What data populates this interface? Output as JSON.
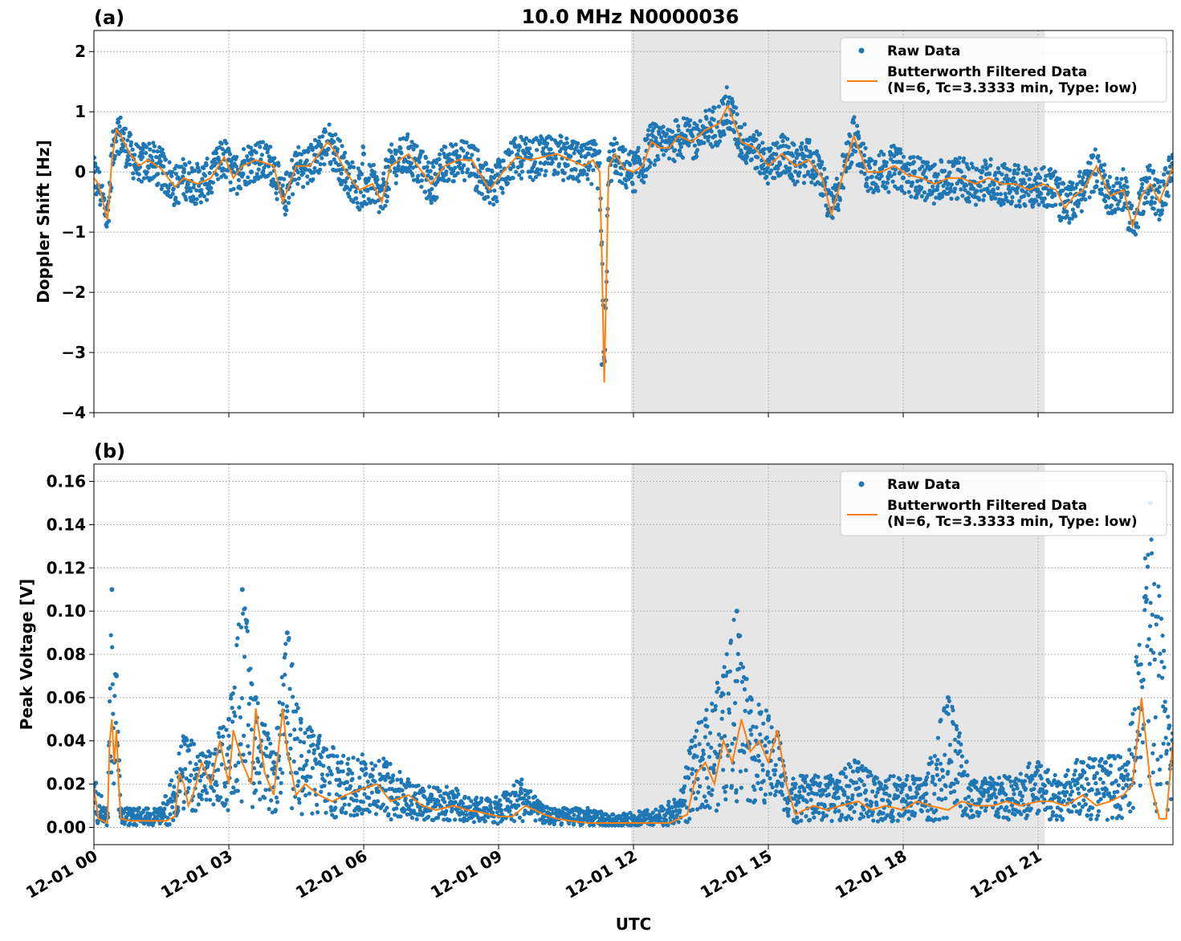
{
  "figure": {
    "title": "10.0 MHz N0000036",
    "xlabel": "UTC",
    "shade_label": "",
    "colors": {
      "raw": "#1f77b4",
      "filtered": "#ff7f0e",
      "shade": "#e6e6e6"
    }
  },
  "chart_data": [
    {
      "type": "scatter",
      "panel_label": "(a)",
      "ylabel": "Doppler Shift [Hz]",
      "ylim": [
        -4.0,
        2.35
      ],
      "yticks": [
        2,
        1,
        0,
        -1,
        -2,
        -3,
        -4
      ],
      "ytick_labels": [
        "2",
        "1",
        "0",
        "−1",
        "−2",
        "−3",
        "−4"
      ],
      "xlim_hours": [
        0,
        24
      ],
      "shaded_interval_hours": [
        11.95,
        21.15
      ],
      "grid": true,
      "legend_position": "top-right",
      "series": [
        {
          "name": "Raw Data",
          "kind": "points",
          "x_hours": [
            0,
            0.25,
            0.4,
            0.5,
            0.75,
            1,
            1.5,
            2,
            2.5,
            3,
            3.5,
            4,
            4.25,
            4.5,
            5,
            5.5,
            6,
            6.25,
            6.5,
            7,
            7.5,
            8,
            8.5,
            9,
            9.5,
            10,
            10.5,
            11,
            11.3,
            11.45,
            11.6,
            12,
            12.5,
            13,
            13.5,
            14,
            14.5,
            15,
            15.5,
            16,
            16.5,
            17,
            17.5,
            18,
            18.5,
            19,
            19.5,
            20,
            20.5,
            21,
            21.5,
            22,
            22.5,
            23,
            23.5,
            24
          ],
          "values": [
            0,
            -0.6,
            0.3,
            0.7,
            0.2,
            0.1,
            0.1,
            0,
            -0.2,
            0.2,
            0,
            0.1,
            -0.6,
            0.1,
            0.5,
            -0.2,
            0.3,
            -0.5,
            0.2,
            0.4,
            -0.1,
            0.3,
            -0.3,
            0.2,
            0.1,
            0.3,
            0.1,
            0.3,
            -3.2,
            0.2,
            0.1,
            0.2,
            0.5,
            0.6,
            0.5,
            0.8,
            0.4,
            0.2,
            0.3,
            -0.1,
            -0.6,
            0.6,
            0,
            -0.1,
            -0.1,
            -0.2,
            -0.2,
            -0.3,
            -0.3,
            -0.4,
            -0.8,
            -0.2,
            -0.4,
            -0.6,
            -0.3,
            0.1
          ]
        },
        {
          "name": "Butterworth Filtered Data\n(N=6, Tc=3.3333 min, Type: low)",
          "kind": "line",
          "x_hours": [
            0,
            0.1,
            0.2,
            0.3,
            0.4,
            0.5,
            0.6,
            0.8,
            1,
            1.2,
            1.5,
            1.8,
            2,
            2.3,
            2.6,
            2.9,
            3.1,
            3.3,
            3.6,
            4,
            4.2,
            4.3,
            4.5,
            4.8,
            5,
            5.2,
            5.4,
            5.6,
            5.9,
            6.2,
            6.4,
            6.6,
            7,
            7.2,
            7.5,
            7.8,
            8.1,
            8.4,
            8.8,
            9.1,
            9.4,
            9.7,
            10,
            10.3,
            10.6,
            10.9,
            11.1,
            11.25,
            11.3,
            11.35,
            11.45,
            11.6,
            11.8,
            12,
            12.2,
            12.4,
            12.6,
            12.8,
            13,
            13.3,
            13.6,
            13.9,
            14.1,
            14.4,
            14.7,
            15,
            15.3,
            15.6,
            15.9,
            16.2,
            16.4,
            16.6,
            16.9,
            17.2,
            17.5,
            17.8,
            18.1,
            18.4,
            18.7,
            19,
            19.3,
            19.6,
            19.9,
            20.2,
            20.5,
            20.8,
            21.1,
            21.4,
            21.6,
            21.8,
            22,
            22.3,
            22.6,
            22.9,
            23.1,
            23.3,
            23.5,
            23.7,
            24
          ],
          "values": [
            -0.1,
            -0.2,
            -0.5,
            -0.8,
            0.2,
            0.7,
            0.6,
            0.3,
            0.1,
            0.2,
            0.05,
            -0.25,
            -0.1,
            -0.2,
            -0.1,
            0.25,
            -0.1,
            0.1,
            0.2,
            0.1,
            -0.5,
            -0.3,
            0.1,
            0.1,
            0.3,
            0.5,
            0.3,
            0.0,
            -0.3,
            -0.2,
            -0.5,
            0.1,
            0.3,
            0.1,
            -0.2,
            0.1,
            0.2,
            0.2,
            -0.3,
            0.0,
            0.25,
            0.2,
            0.25,
            0.3,
            0.2,
            0.1,
            0.2,
            0.0,
            -1.5,
            -3.5,
            0.1,
            0.3,
            0.05,
            0.0,
            0.1,
            0.5,
            0.4,
            0.4,
            0.6,
            0.5,
            0.7,
            0.8,
            1.1,
            0.5,
            0.4,
            0.1,
            0.3,
            0.1,
            0.2,
            -0.1,
            -0.7,
            -0.2,
            0.6,
            0.0,
            0.0,
            0.1,
            -0.05,
            -0.1,
            -0.2,
            -0.1,
            -0.1,
            -0.2,
            -0.1,
            -0.2,
            -0.2,
            -0.3,
            -0.2,
            -0.3,
            -0.6,
            -0.4,
            -0.3,
            0.1,
            -0.4,
            -0.3,
            -0.9,
            -0.4,
            -0.2,
            -0.5,
            0.1
          ]
        }
      ]
    },
    {
      "type": "scatter",
      "panel_label": "(b)",
      "ylabel": "Peak Voltage [V]",
      "ylim": [
        -0.008,
        0.168
      ],
      "yticks": [
        0.16,
        0.14,
        0.12,
        0.1,
        0.08,
        0.06,
        0.04,
        0.02,
        0.0
      ],
      "ytick_labels": [
        "0.16",
        "0.14",
        "0.12",
        "0.10",
        "0.08",
        "0.06",
        "0.04",
        "0.02",
        "0.00"
      ],
      "xlim_hours": [
        0,
        24
      ],
      "shaded_interval_hours": [
        11.95,
        21.15
      ],
      "grid": true,
      "legend_position": "top-right",
      "x_tick_hours": [
        0,
        3,
        6,
        9,
        12,
        15,
        18,
        21
      ],
      "x_tick_labels": [
        "12-01 00",
        "12-01 03",
        "12-01 06",
        "12-01 09",
        "12-01 12",
        "12-01 15",
        "12-01 18",
        "12-01 21"
      ],
      "series": [
        {
          "name": "Raw Data",
          "kind": "points",
          "x_hours": [
            0,
            0.3,
            0.4,
            0.5,
            0.6,
            1,
            1.5,
            2,
            2.5,
            3,
            3.3,
            3.6,
            4,
            4.3,
            4.6,
            5,
            5.5,
            6,
            6.5,
            7,
            7.5,
            8,
            8.5,
            9,
            9.5,
            10,
            10.5,
            11,
            11.5,
            12,
            12.5,
            13,
            13.3,
            13.6,
            14,
            14.3,
            14.6,
            15,
            15.3,
            15.6,
            16,
            16.5,
            17,
            17.5,
            18,
            18.5,
            19,
            19.5,
            20,
            20.5,
            21,
            21.5,
            22,
            22.5,
            23,
            23.5,
            24
          ],
          "values": [
            0.02,
            0.005,
            0.11,
            0.07,
            0.005,
            0.005,
            0.005,
            0.04,
            0.03,
            0.05,
            0.11,
            0.06,
            0.03,
            0.09,
            0.05,
            0.04,
            0.03,
            0.03,
            0.03,
            0.02,
            0.015,
            0.015,
            0.01,
            0.01,
            0.02,
            0.005,
            0.005,
            0.005,
            0.002,
            0.003,
            0.005,
            0.01,
            0.04,
            0.05,
            0.07,
            0.1,
            0.06,
            0.05,
            0.02,
            0.02,
            0.02,
            0.02,
            0.03,
            0.02,
            0.02,
            0.02,
            0.06,
            0.02,
            0.02,
            0.02,
            0.03,
            0.02,
            0.03,
            0.03,
            0.03,
            0.15,
            0.04
          ]
        },
        {
          "name": "Butterworth Filtered Data\n(N=6, Tc=3.3333 min, Type: low)",
          "kind": "line",
          "x_hours": [
            0,
            0.1,
            0.2,
            0.3,
            0.35,
            0.4,
            0.45,
            0.5,
            0.55,
            0.6,
            0.8,
            1,
            1.3,
            1.6,
            1.8,
            1.9,
            2,
            2.1,
            2.2,
            2.4,
            2.6,
            2.8,
            3,
            3.1,
            3.3,
            3.5,
            3.6,
            3.8,
            4,
            4.2,
            4.3,
            4.4,
            4.5,
            4.7,
            5,
            5.3,
            5.6,
            6,
            6.3,
            6.6,
            7,
            7.3,
            7.6,
            8,
            8.3,
            8.6,
            9,
            9.3,
            9.6,
            10,
            10.3,
            10.6,
            11,
            11.3,
            11.6,
            12,
            12.3,
            12.6,
            12.8,
            13,
            13.2,
            13.4,
            13.6,
            13.8,
            14,
            14.2,
            14.4,
            14.6,
            14.8,
            15,
            15.2,
            15.4,
            15.6,
            16,
            16.3,
            16.6,
            17,
            17.3,
            17.6,
            18,
            18.3,
            18.6,
            19,
            19.3,
            19.6,
            20,
            20.3,
            20.6,
            21,
            21.3,
            21.6,
            22,
            22.3,
            22.6,
            22.9,
            23.1,
            23.3,
            23.5,
            23.7,
            23.85,
            24
          ],
          "values": [
            0.018,
            0.004,
            0.003,
            0.002,
            0.04,
            0.05,
            0.03,
            0.045,
            0.02,
            0.004,
            0.003,
            0.003,
            0.003,
            0.003,
            0.005,
            0.025,
            0.02,
            0.01,
            0.015,
            0.03,
            0.02,
            0.04,
            0.02,
            0.045,
            0.03,
            0.02,
            0.055,
            0.025,
            0.015,
            0.055,
            0.035,
            0.025,
            0.015,
            0.02,
            0.015,
            0.012,
            0.015,
            0.018,
            0.02,
            0.012,
            0.015,
            0.01,
            0.008,
            0.01,
            0.008,
            0.007,
            0.005,
            0.005,
            0.01,
            0.006,
            0.004,
            0.003,
            0.002,
            0.002,
            0.002,
            0.002,
            0.002,
            0.002,
            0.002,
            0.004,
            0.006,
            0.025,
            0.03,
            0.02,
            0.04,
            0.03,
            0.05,
            0.035,
            0.04,
            0.03,
            0.045,
            0.02,
            0.006,
            0.01,
            0.008,
            0.01,
            0.012,
            0.008,
            0.01,
            0.008,
            0.012,
            0.01,
            0.008,
            0.012,
            0.01,
            0.01,
            0.012,
            0.01,
            0.012,
            0.012,
            0.01,
            0.015,
            0.01,
            0.012,
            0.015,
            0.02,
            0.06,
            0.02,
            0.004,
            0.004,
            0.04
          ]
        }
      ]
    }
  ]
}
